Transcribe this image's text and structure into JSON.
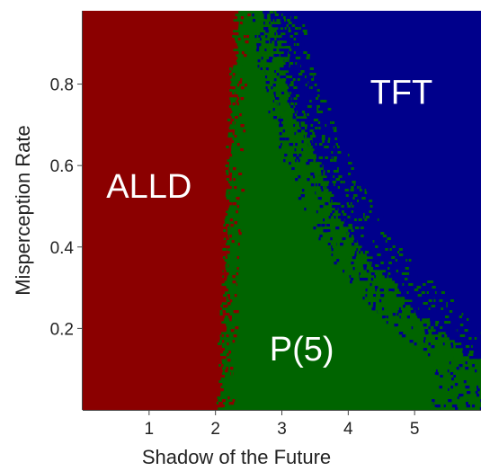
{
  "chart_data": {
    "type": "heatmap",
    "title": "",
    "xlabel": "Shadow of the Future",
    "ylabel": "Misperception Rate",
    "xlim": [
      0.0,
      6.0
    ],
    "ylim": [
      0.0,
      0.98
    ],
    "x_ticks": [
      1,
      2,
      3,
      4,
      5
    ],
    "y_ticks": [
      0.2,
      0.4,
      0.6,
      0.8
    ],
    "x_tick_labels": [
      "1",
      "2",
      "3",
      "4",
      "5"
    ],
    "y_tick_labels": [
      "0.2",
      "0.4",
      "0.6",
      "0.8"
    ],
    "grid": false,
    "legend": "none",
    "categories": [
      "ALLD",
      "P(5)",
      "TFT"
    ],
    "colors": {
      "ALLD": "#8b0000",
      "P(5)": "#006400",
      "TFT": "#00008b"
    },
    "regions": [
      {
        "name": "ALLD",
        "label_at": [
          1.0,
          0.55
        ]
      },
      {
        "name": "P(5)",
        "label_at": [
          3.3,
          0.15
        ]
      },
      {
        "name": "TFT",
        "label_at": [
          4.8,
          0.78
        ]
      }
    ],
    "boundaries": {
      "ALLD_to_P5": [
        {
          "y": 0.0,
          "x": 2.08
        },
        {
          "y": 0.2,
          "x": 2.12
        },
        {
          "y": 0.4,
          "x": 2.17
        },
        {
          "y": 0.6,
          "x": 2.22
        },
        {
          "y": 0.8,
          "x": 2.27
        },
        {
          "y": 0.98,
          "x": 2.33
        }
      ],
      "P5_to_TFT": [
        {
          "y": 0.98,
          "x": 2.9
        },
        {
          "y": 0.8,
          "x": 3.1
        },
        {
          "y": 0.6,
          "x": 3.55
        },
        {
          "y": 0.4,
          "x": 4.15
        },
        {
          "y": 0.3,
          "x": 4.7
        },
        {
          "y": 0.2,
          "x": 5.3
        },
        {
          "y": 0.12,
          "x": 6.0
        }
      ]
    }
  }
}
